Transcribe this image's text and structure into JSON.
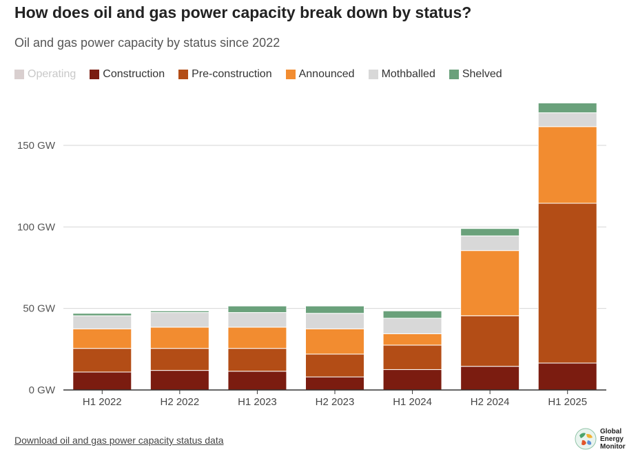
{
  "header": {
    "title": "How does oil and gas power capacity break down by status?",
    "subtitle": "Oil and gas power capacity by status since 2022"
  },
  "legend": [
    {
      "label": "Operating",
      "color": "#d9cfcf",
      "active": false
    },
    {
      "label": "Construction",
      "color": "#7b1c10",
      "active": true
    },
    {
      "label": "Pre-construction",
      "color": "#b34d16",
      "active": true
    },
    {
      "label": "Announced",
      "color": "#f28c30",
      "active": true
    },
    {
      "label": "Mothballed",
      "color": "#d8d8d8",
      "active": true
    },
    {
      "label": "Shelved",
      "color": "#6aa17b",
      "active": true
    }
  ],
  "chart_data": {
    "type": "bar",
    "stacked": true,
    "categories": [
      "H1 2022",
      "H2 2022",
      "H1 2023",
      "H2 2023",
      "H1 2024",
      "H2 2024",
      "H1 2025"
    ],
    "series": [
      {
        "name": "Construction",
        "color": "#7b1c10",
        "values": [
          11,
          12,
          11.5,
          8,
          12.5,
          14.5,
          16.5
        ]
      },
      {
        "name": "Pre-construction",
        "color": "#b34d16",
        "values": [
          14.5,
          13.5,
          14,
          14,
          15,
          31,
          98
        ]
      },
      {
        "name": "Announced",
        "color": "#f28c30",
        "values": [
          12,
          13,
          13,
          15.5,
          7,
          40,
          47
        ]
      },
      {
        "name": "Mothballed",
        "color": "#d8d8d8",
        "values": [
          8,
          9,
          9,
          9.5,
          9.5,
          9,
          8.5
        ]
      },
      {
        "name": "Shelved",
        "color": "#6aa17b",
        "values": [
          1.5,
          1,
          4,
          4.5,
          4.5,
          4.5,
          6
        ]
      }
    ],
    "ylim": [
      0,
      180
    ],
    "yticks": [
      0,
      50,
      100,
      150
    ],
    "ytick_labels": [
      "0 GW",
      "50 GW",
      "100 GW",
      "150 GW"
    ],
    "xlabel": "",
    "ylabel": "",
    "grid": true
  },
  "footer": {
    "download_label": "Download oil and gas power capacity status data",
    "logo_lines": [
      "Global",
      "Energy",
      "Monitor"
    ]
  }
}
